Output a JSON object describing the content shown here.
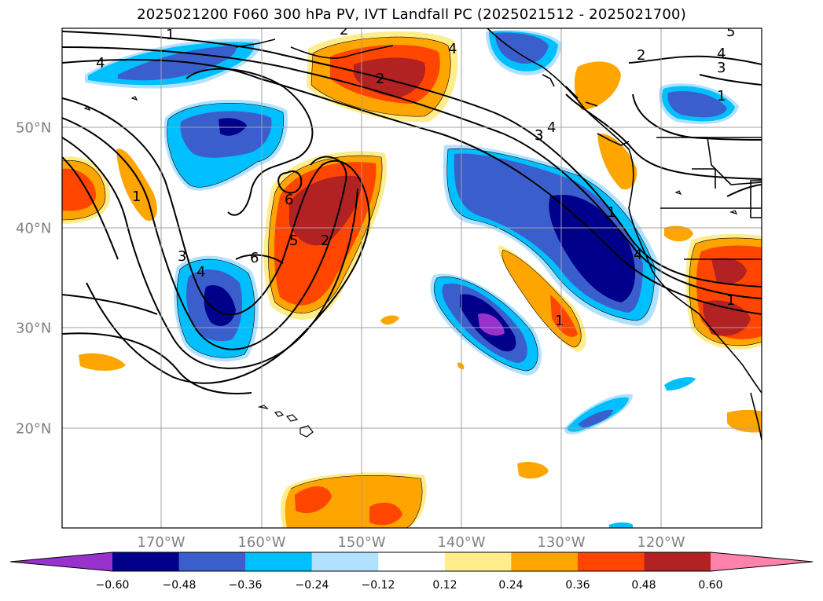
{
  "title": "2025021200 F060 300 hPa PV, IVT Landfall PC (2025021512 - 2025021700)",
  "map": {
    "lon_labels": [
      "170°W",
      "160°W",
      "150°W",
      "140°W",
      "130°W",
      "120°W"
    ],
    "lat_labels": [
      "50°N",
      "40°N",
      "30°N",
      "20°N"
    ],
    "contour_labels": [
      "1",
      "2",
      "2",
      "4",
      "4",
      "3",
      "5",
      "4",
      "3",
      "1",
      "2",
      "3",
      "4",
      "6",
      "5",
      "2",
      "6",
      "3",
      "4",
      "1",
      "1",
      "1",
      "1",
      "4"
    ]
  },
  "colorbar": {
    "tick_labels": [
      "−0.60",
      "−0.48",
      "−0.36",
      "−0.24",
      "−0.12",
      "0.12",
      "0.24",
      "0.36",
      "0.48",
      "0.60"
    ],
    "colors": [
      "#9932cc",
      "#00008b",
      "#3a5fcd",
      "#00bfff",
      "#b0e2ff",
      "#ffffff",
      "#ffec8b",
      "#ffa500",
      "#ff4500",
      "#b22222",
      "#ff82ab"
    ]
  }
}
